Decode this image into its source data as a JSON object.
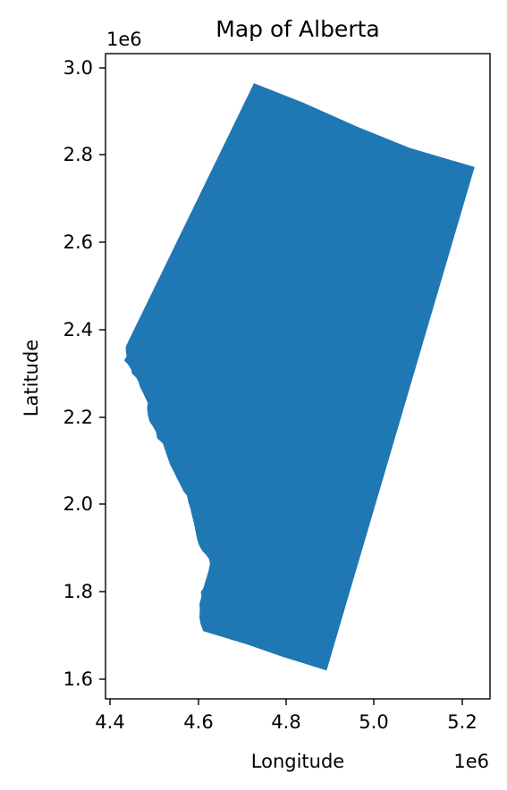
{
  "title": "Map of Alberta",
  "x_axis": {
    "label": "Longitude",
    "offset": "1e6",
    "tick_labels": [
      "4.4",
      "4.6",
      "4.8",
      "5.0",
      "5.2"
    ]
  },
  "y_axis": {
    "label": "Latitude",
    "offset": "1e6",
    "tick_labels": [
      "1.6",
      "1.8",
      "2.0",
      "2.2",
      "2.4",
      "2.6",
      "2.8",
      "3.0"
    ]
  },
  "colors": {
    "fill": "#1f77b4",
    "axes": "#000000",
    "background": "#ffffff"
  },
  "chart_data": {
    "type": "map",
    "title": "Map of Alberta",
    "xlabel": "Longitude",
    "ylabel": "Latitude",
    "x_ticks": [
      4400000,
      4600000,
      4800000,
      5000000,
      5200000
    ],
    "y_ticks": [
      1600000,
      1800000,
      2000000,
      2200000,
      2400000,
      2600000,
      2800000,
      3000000
    ],
    "xlim": [
      4390000,
      4260000
    ],
    "ylim": [
      1545000,
      3030000
    ],
    "grid": false,
    "regions": [
      {
        "outline_xy": [
          [
            4436000,
            2362000
          ],
          [
            4727000,
            2965000
          ],
          [
            4840000,
            2920000
          ],
          [
            4960000,
            2866000
          ],
          [
            5080000,
            2817000
          ],
          [
            5228000,
            2773000
          ],
          [
            4892000,
            1620000
          ],
          [
            4790000,
            1652000
          ],
          [
            4710000,
            1680000
          ],
          [
            4612000,
            1710000
          ],
          [
            4606000,
            1725000
          ],
          [
            4603000,
            1742000
          ],
          [
            4604000,
            1760000
          ],
          [
            4603000,
            1772000
          ],
          [
            4608000,
            1790000
          ],
          [
            4606000,
            1800000
          ],
          [
            4612000,
            1808000
          ],
          [
            4616000,
            1822000
          ],
          [
            4620000,
            1835000
          ],
          [
            4624000,
            1848000
          ],
          [
            4627000,
            1865000
          ],
          [
            4625000,
            1875000
          ],
          [
            4618000,
            1885000
          ],
          [
            4610000,
            1893000
          ],
          [
            4603000,
            1905000
          ],
          [
            4598000,
            1920000
          ],
          [
            4595000,
            1935000
          ],
          [
            4592000,
            1950000
          ],
          [
            4590000,
            1960000
          ],
          [
            4586000,
            1975000
          ],
          [
            4583000,
            1990000
          ],
          [
            4578000,
            2005000
          ],
          [
            4575000,
            2020000
          ],
          [
            4567000,
            2030000
          ],
          [
            4560000,
            2045000
          ],
          [
            4552000,
            2060000
          ],
          [
            4545000,
            2075000
          ],
          [
            4537000,
            2090000
          ],
          [
            4530000,
            2110000
          ],
          [
            4525000,
            2125000
          ],
          [
            4520000,
            2140000
          ],
          [
            4507000,
            2152000
          ],
          [
            4505000,
            2165000
          ],
          [
            4498000,
            2178000
          ],
          [
            4490000,
            2190000
          ],
          [
            4486000,
            2205000
          ],
          [
            4484000,
            2220000
          ],
          [
            4486000,
            2232000
          ],
          [
            4480000,
            2245000
          ],
          [
            4474000,
            2258000
          ],
          [
            4468000,
            2270000
          ],
          [
            4465000,
            2280000
          ],
          [
            4460000,
            2290000
          ],
          [
            4450000,
            2300000
          ],
          [
            4448000,
            2310000
          ],
          [
            4440000,
            2322000
          ],
          [
            4432000,
            2330000
          ],
          [
            4438000,
            2340000
          ],
          [
            4436000,
            2350000
          ]
        ]
      }
    ]
  }
}
